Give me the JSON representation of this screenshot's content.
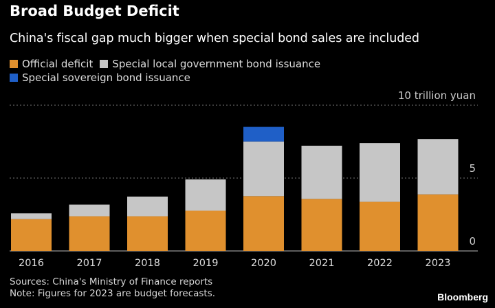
{
  "chart_data": {
    "type": "bar",
    "stacked": true,
    "title": "Broad Budget Deficit",
    "subtitle": "China's fiscal gap much bigger when special bond sales are included",
    "categories": [
      "2016",
      "2017",
      "2018",
      "2019",
      "2020",
      "2021",
      "2022",
      "2023"
    ],
    "series": [
      {
        "name": "Official deficit",
        "color": "#e0902e",
        "values": [
          2.18,
          2.38,
          2.38,
          2.76,
          3.76,
          3.57,
          3.37,
          3.88
        ]
      },
      {
        "name": "Special local government bond issuance",
        "color": "#c6c6c6",
        "values": [
          0.4,
          0.8,
          1.35,
          2.15,
          3.75,
          3.65,
          4.03,
          3.8
        ]
      },
      {
        "name": "Special sovereign bond issuance",
        "color": "#1f5fc7",
        "values": [
          0,
          0,
          0,
          0,
          1.0,
          0,
          0,
          0
        ]
      }
    ],
    "yticks": [
      {
        "value": 0,
        "label": "0"
      },
      {
        "value": 5,
        "label": "5"
      },
      {
        "value": 10,
        "label": "10 trillion yuan"
      }
    ],
    "ylim": [
      0,
      10
    ],
    "grid": true,
    "legend_position": "top-left"
  },
  "notes": {
    "sources": "Sources: China's Ministry of Finance reports",
    "note": "Note: Figures for 2023 are budget forecasts."
  },
  "brand": "Bloomberg"
}
